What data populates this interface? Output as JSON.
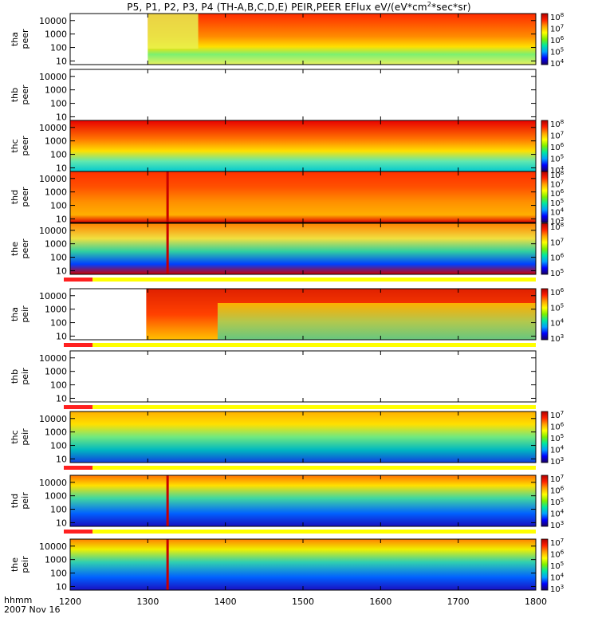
{
  "title": {
    "main": "P5, P1, P2, P3, P4 (TH-A,B,C,D,E) PEIR,PEER EFlux eV/(eV*cm",
    "sup": "2",
    "tail": "*sec*sr)"
  },
  "footer": {
    "time_label": "hhmm",
    "date": "2007 Nov 16"
  },
  "chart_data": {
    "type": "heatmap",
    "x": {
      "range": [
        1200,
        1800
      ],
      "ticks": [
        1200,
        1300,
        1400,
        1500,
        1600,
        1700,
        1800
      ],
      "tick_labels": [
        "1200",
        "1300",
        "1400",
        "1500",
        "1600",
        "1700",
        "1800"
      ]
    },
    "y_scale": "log",
    "panels": [
      {
        "probe": "tha",
        "species": "peer",
        "ylabel": [
          "tha",
          "peer"
        ],
        "yticks": [
          "10",
          "100",
          "1000",
          "10000"
        ],
        "colorbar": {
          "scale": "log",
          "range": [
            "10^4",
            "10^8"
          ],
          "labels": [
            {
              "b": "10",
              "e": "8"
            },
            {
              "b": "10",
              "e": "7"
            },
            {
              "b": "10",
              "e": "6"
            },
            {
              "b": "10",
              "e": "5"
            },
            {
              "b": "10",
              "e": "4"
            }
          ]
        },
        "data_start": 1300,
        "high_energy_onset": 1365,
        "mode_bar": false
      },
      {
        "probe": "thb",
        "species": "peer",
        "ylabel": [
          "thb",
          "peer"
        ],
        "yticks": [
          "10",
          "100",
          "1000",
          "10000"
        ],
        "colorbar": null,
        "data_start": null,
        "mode_bar": false
      },
      {
        "probe": "thc",
        "species": "peer",
        "ylabel": [
          "thc",
          "peer"
        ],
        "yticks": [
          "10",
          "100",
          "1000",
          "10000"
        ],
        "colorbar": {
          "scale": "log",
          "range": [
            "10^4",
            "10^8"
          ],
          "labels": [
            {
              "b": "10",
              "e": "8"
            },
            {
              "b": "10",
              "e": "7"
            },
            {
              "b": "10",
              "e": "6"
            },
            {
              "b": "10",
              "e": "5"
            },
            {
              "b": "10",
              "e": "4"
            }
          ]
        },
        "data_start": 1200,
        "mode_bar": false
      },
      {
        "probe": "thd",
        "species": "peer",
        "ylabel": [
          "thd",
          "peer"
        ],
        "yticks": [
          "10",
          "100",
          "1000",
          "10000"
        ],
        "colorbar": {
          "scale": "log",
          "range": [
            "10^3",
            "10^8"
          ],
          "labels": [
            {
              "b": "10",
              "e": "8"
            },
            {
              "b": "10",
              "e": "7"
            },
            {
              "b": "10",
              "e": "6"
            },
            {
              "b": "10",
              "e": "5"
            },
            {
              "b": "10",
              "e": "4"
            },
            {
              "b": "10",
              "e": "3"
            }
          ]
        },
        "data_start": 1200,
        "spike_at": 1325,
        "mode_bar": false
      },
      {
        "probe": "the",
        "species": "peer",
        "ylabel": [
          "the",
          "peer"
        ],
        "yticks": [
          "10",
          "100",
          "1000",
          "10000"
        ],
        "colorbar": {
          "scale": "log",
          "range": [
            "10^5",
            "10^8"
          ],
          "labels": [
            {
              "b": "10",
              "e": "8"
            },
            {
              "b": "10",
              "e": "7"
            },
            {
              "b": "10",
              "e": "6"
            },
            {
              "b": "10",
              "e": "5"
            }
          ]
        },
        "data_start": 1200,
        "spike_at": 1325,
        "mode_bar": true
      },
      {
        "probe": "tha",
        "species": "peir",
        "ylabel": [
          "tha",
          "peir"
        ],
        "yticks": [
          "10",
          "100",
          "1000",
          "10000"
        ],
        "colorbar": {
          "scale": "log",
          "range": [
            "10^3",
            "10^6"
          ],
          "labels": [
            {
              "b": "10",
              "e": "6"
            },
            {
              "b": "10",
              "e": "5"
            },
            {
              "b": "10",
              "e": "4"
            },
            {
              "b": "10",
              "e": "3"
            }
          ]
        },
        "data_start": 1298,
        "mode_bar": true
      },
      {
        "probe": "thb",
        "species": "peir",
        "ylabel": [
          "thb",
          "peir"
        ],
        "yticks": [
          "10",
          "100",
          "1000",
          "10000"
        ],
        "colorbar": null,
        "data_start": null,
        "mode_bar": true
      },
      {
        "probe": "thc",
        "species": "peir",
        "ylabel": [
          "thc",
          "peir"
        ],
        "yticks": [
          "10",
          "100",
          "1000",
          "10000"
        ],
        "colorbar": {
          "scale": "log",
          "range": [
            "10^3",
            "10^7"
          ],
          "labels": [
            {
              "b": "10",
              "e": "7"
            },
            {
              "b": "10",
              "e": "6"
            },
            {
              "b": "10",
              "e": "5"
            },
            {
              "b": "10",
              "e": "4"
            },
            {
              "b": "10",
              "e": "3"
            }
          ]
        },
        "data_start": 1200,
        "mode_bar": true
      },
      {
        "probe": "thd",
        "species": "peir",
        "ylabel": [
          "thd",
          "peir"
        ],
        "yticks": [
          "10",
          "100",
          "1000",
          "10000"
        ],
        "colorbar": {
          "scale": "log",
          "range": [
            "10^3",
            "10^7"
          ],
          "labels": [
            {
              "b": "10",
              "e": "7"
            },
            {
              "b": "10",
              "e": "6"
            },
            {
              "b": "10",
              "e": "5"
            },
            {
              "b": "10",
              "e": "4"
            },
            {
              "b": "10",
              "e": "3"
            }
          ]
        },
        "data_start": 1200,
        "spike_at": 1325,
        "mode_bar": true
      },
      {
        "probe": "the",
        "species": "peir",
        "ylabel": [
          "the",
          "peir"
        ],
        "yticks": [
          "10",
          "100",
          "1000",
          "10000"
        ],
        "colorbar": {
          "scale": "log",
          "range": [
            "10^3",
            "10^7"
          ],
          "labels": [
            {
              "b": "10",
              "e": "7"
            },
            {
              "b": "10",
              "e": "6"
            },
            {
              "b": "10",
              "e": "5"
            },
            {
              "b": "10",
              "e": "4"
            },
            {
              "b": "10",
              "e": "3"
            }
          ]
        },
        "data_start": 1200,
        "spike_at": 1325,
        "mode_bar": false
      }
    ],
    "colormap": [
      "#1a0060",
      "#0000ff",
      "#00a0ff",
      "#00e8a0",
      "#7cf000",
      "#ffff00",
      "#ffa000",
      "#ff2000",
      "#b00000"
    ]
  }
}
